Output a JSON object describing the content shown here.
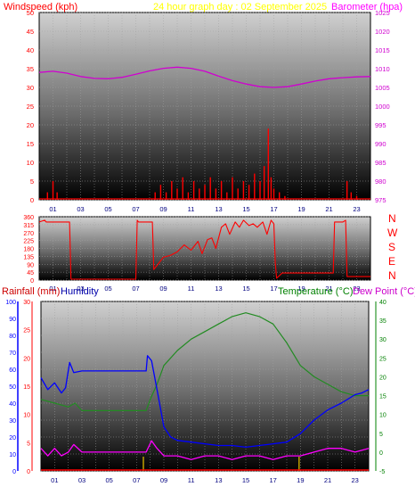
{
  "header": {
    "left_label": "Windspeed (kph)",
    "center_label": "24 hour graph day : 02 September 2025",
    "right_label": "Barometer (hpa)"
  },
  "direction_labels": [
    "N",
    "W",
    "S",
    "E",
    "N"
  ],
  "lower_header": {
    "rainfall_label": "Rainfall (mm)",
    "humidity_label": "Humidity",
    "temperature_label": "Temperature (°C)",
    "dewpoint_label": "Dew Point (°C)"
  },
  "colors": {
    "wind": "#ff0000",
    "gust_ticks": "#008000",
    "barometer": "#d000d0",
    "direction": "#ff0000",
    "humidity": "#0000ff",
    "temperature": "#228b22",
    "dewpoint": "#ff00ff",
    "rain_tick": "#c0a000",
    "title": "#ffff00"
  },
  "chart_data": [
    {
      "type": "line",
      "title": "24 hour graph day : 02 September 2025",
      "x_ticks": [
        "01",
        "03",
        "05",
        "07",
        "09",
        "11",
        "13",
        "15",
        "17",
        "19",
        "21",
        "23"
      ],
      "left_axis": {
        "label": "Windspeed (kph)",
        "ylim": [
          0,
          50
        ],
        "ticks": [
          0,
          5,
          10,
          15,
          20,
          25,
          30,
          35,
          40,
          45,
          50
        ]
      },
      "right_axis": {
        "label": "Barometer (hpa)",
        "ylim": [
          975,
          1025
        ],
        "ticks": [
          975,
          980,
          985,
          990,
          995,
          1000,
          1005,
          1010,
          1015,
          1020,
          1025
        ]
      },
      "series": [
        {
          "name": "Windspeed (kph)",
          "axis": "left",
          "x": [
            0.2,
            0.6,
            1.0,
            1.3,
            1.6,
            2.0,
            3,
            4,
            5,
            6,
            7,
            8,
            8.4,
            8.8,
            9.2,
            9.6,
            10,
            10.4,
            10.8,
            11.2,
            11.6,
            12,
            12.4,
            12.8,
            13.2,
            13.6,
            14,
            14.4,
            14.8,
            15.2,
            15.6,
            16,
            16.3,
            16.6,
            16.8,
            17,
            17.4,
            17.8,
            18.2,
            19,
            20,
            21,
            22,
            22.3,
            22.6,
            23,
            23.6
          ],
          "values": [
            0,
            2,
            5,
            2,
            0,
            0,
            0,
            0,
            0,
            0,
            0,
            0,
            2,
            4,
            2,
            5,
            3,
            6,
            2,
            5,
            3,
            4,
            6,
            3,
            5,
            2,
            6,
            3,
            5,
            4,
            7,
            5,
            9,
            19,
            6,
            3,
            2,
            1,
            0,
            0,
            0,
            0,
            0,
            5,
            2,
            1,
            0
          ]
        },
        {
          "name": "Barometer (hpa)",
          "axis": "right",
          "x": [
            0,
            1,
            2,
            3,
            4,
            5,
            6,
            7,
            8,
            9,
            10,
            11,
            12,
            13,
            14,
            15,
            16,
            17,
            18,
            19,
            20,
            21,
            22,
            23,
            24
          ],
          "values": [
            1009,
            1009.3,
            1008.8,
            1007.9,
            1007.4,
            1007.3,
            1007.7,
            1008.5,
            1009.4,
            1010.1,
            1010.4,
            1010.1,
            1009.3,
            1008,
            1006.8,
            1005.9,
            1005.2,
            1005,
            1005.2,
            1005.9,
            1006.7,
            1007.3,
            1007.6,
            1007.8,
            1007.9
          ]
        }
      ]
    },
    {
      "type": "line",
      "name": "wind direction",
      "x_ticks": [
        "01",
        "03",
        "05",
        "07",
        "09",
        "11",
        "13",
        "15",
        "17",
        "19",
        "21",
        "23"
      ],
      "yticks": [
        0,
        45,
        90,
        135,
        180,
        225,
        270,
        315,
        360
      ],
      "ylim": [
        0,
        360
      ],
      "series": [
        {
          "x": [
            0,
            0.4,
            0.5,
            2.2,
            2.3,
            3,
            5,
            7,
            7.1,
            7.2,
            8.2,
            8.3,
            9,
            9.5,
            10,
            10.5,
            11,
            11.5,
            11.8,
            12.2,
            12.5,
            12.8,
            13.2,
            13.5,
            13.8,
            14.2,
            14.5,
            14.8,
            15.2,
            15.5,
            15.8,
            16.2,
            16.5,
            16.8,
            17,
            17.1,
            17.2,
            17.6,
            18.5,
            19,
            20,
            21,
            21.3,
            21.4,
            22,
            22.2,
            22.3,
            23,
            24
          ],
          "values": [
            330,
            340,
            330,
            330,
            5,
            5,
            5,
            5,
            340,
            330,
            330,
            60,
            130,
            140,
            160,
            200,
            170,
            220,
            150,
            230,
            240,
            180,
            300,
            320,
            260,
            330,
            300,
            340,
            310,
            320,
            300,
            330,
            260,
            340,
            320,
            100,
            10,
            40,
            40,
            40,
            40,
            40,
            40,
            330,
            330,
            340,
            20,
            20,
            20
          ]
        }
      ]
    },
    {
      "type": "line",
      "x_ticks": [
        "01",
        "03",
        "05",
        "07",
        "09",
        "11",
        "13",
        "15",
        "17",
        "19",
        "21",
        "23"
      ],
      "left_axis": {
        "label": "Humidity",
        "ylim": [
          0,
          100
        ],
        "ticks": [
          0,
          10,
          20,
          30,
          40,
          50,
          60,
          70,
          80,
          90,
          100
        ]
      },
      "rain_axis": {
        "label": "Rainfall (mm)",
        "ylim": [
          0,
          30
        ],
        "ticks": [
          0,
          5,
          10,
          15,
          20,
          25,
          30
        ]
      },
      "right_axis": {
        "label": "Temperature (°C) / Dew Point (°C)",
        "ylim": [
          -5,
          40
        ],
        "ticks": [
          -5,
          0,
          5,
          10,
          15,
          20,
          25,
          30,
          35,
          40
        ]
      },
      "series": [
        {
          "name": "Humidity",
          "axis": "left",
          "x": [
            0,
            0.5,
            1,
            1.5,
            1.8,
            2.1,
            2.4,
            3,
            5,
            7,
            7.7,
            7.8,
            8.1,
            8.5,
            9,
            9.5,
            10,
            11,
            12,
            13,
            14,
            15,
            16,
            17,
            18,
            19,
            20,
            21,
            22,
            23,
            23.5,
            24
          ],
          "values": [
            55,
            48,
            52,
            46,
            49,
            64,
            58,
            59,
            59,
            59,
            59,
            68,
            65,
            48,
            26,
            20,
            18,
            17,
            16,
            15,
            15,
            14,
            15,
            16,
            17,
            22,
            30,
            36,
            40,
            45,
            46,
            48
          ]
        },
        {
          "name": "Temperature (°C)",
          "axis": "right",
          "x": [
            0,
            1,
            2,
            2.5,
            3,
            5,
            7,
            7.7,
            8,
            8.5,
            9,
            10,
            11,
            12,
            13,
            14,
            15,
            16,
            17,
            18,
            19,
            20,
            21,
            22,
            23,
            24
          ],
          "values": [
            14,
            13,
            12,
            13,
            11,
            11,
            11,
            11,
            14,
            18,
            23,
            27,
            30,
            32,
            34,
            36,
            37,
            36,
            34,
            29,
            23,
            20,
            18,
            16,
            15,
            15
          ]
        },
        {
          "name": "Dew Point (°C)",
          "axis": "right",
          "x": [
            0,
            0.5,
            1,
            1.5,
            2,
            2.4,
            3,
            5,
            7,
            7.7,
            8.1,
            8.5,
            9,
            10,
            11,
            12,
            13,
            14,
            15,
            16,
            17,
            18,
            19,
            20,
            21,
            22,
            23,
            24
          ],
          "values": [
            1,
            -1,
            1,
            -1,
            0,
            2,
            0,
            0,
            0,
            0,
            3,
            1,
            -1,
            -1,
            -2,
            -1,
            -1,
            -2,
            -1,
            -1,
            -2,
            -1,
            -1,
            0,
            1,
            1,
            0,
            1
          ]
        },
        {
          "name": "Rainfall (mm)",
          "axis": "rain",
          "x": [
            7.5,
            18.9
          ],
          "values": [
            0,
            0
          ]
        }
      ]
    }
  ]
}
